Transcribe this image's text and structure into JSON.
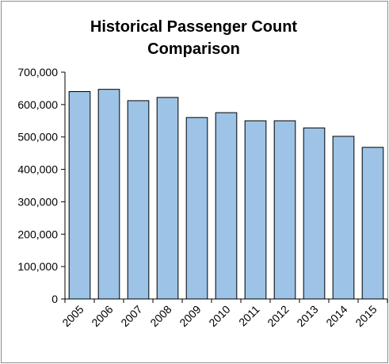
{
  "chart_data": {
    "type": "bar",
    "title_lines": [
      "Historical Passenger Count",
      "Comparison"
    ],
    "xlabel": "",
    "ylabel": "",
    "categories": [
      "2005",
      "2006",
      "2007",
      "2008",
      "2009",
      "2010",
      "2011",
      "2012",
      "2013",
      "2014",
      "2015"
    ],
    "values": [
      640000,
      647000,
      612000,
      622000,
      560000,
      575000,
      550000,
      550000,
      528000,
      502000,
      468000
    ],
    "ylim": [
      0,
      700000
    ],
    "yticks": [
      0,
      100000,
      200000,
      300000,
      400000,
      500000,
      600000,
      700000
    ],
    "ytick_labels": [
      "0",
      "100,000",
      "200,000",
      "300,000",
      "400,000",
      "500,000",
      "600,000",
      "700,000"
    ],
    "grid": false,
    "legend": "none",
    "colors": {
      "bar_fill": "#9dc3e6",
      "bar_edge": "#000000",
      "axis": "#000000"
    }
  }
}
